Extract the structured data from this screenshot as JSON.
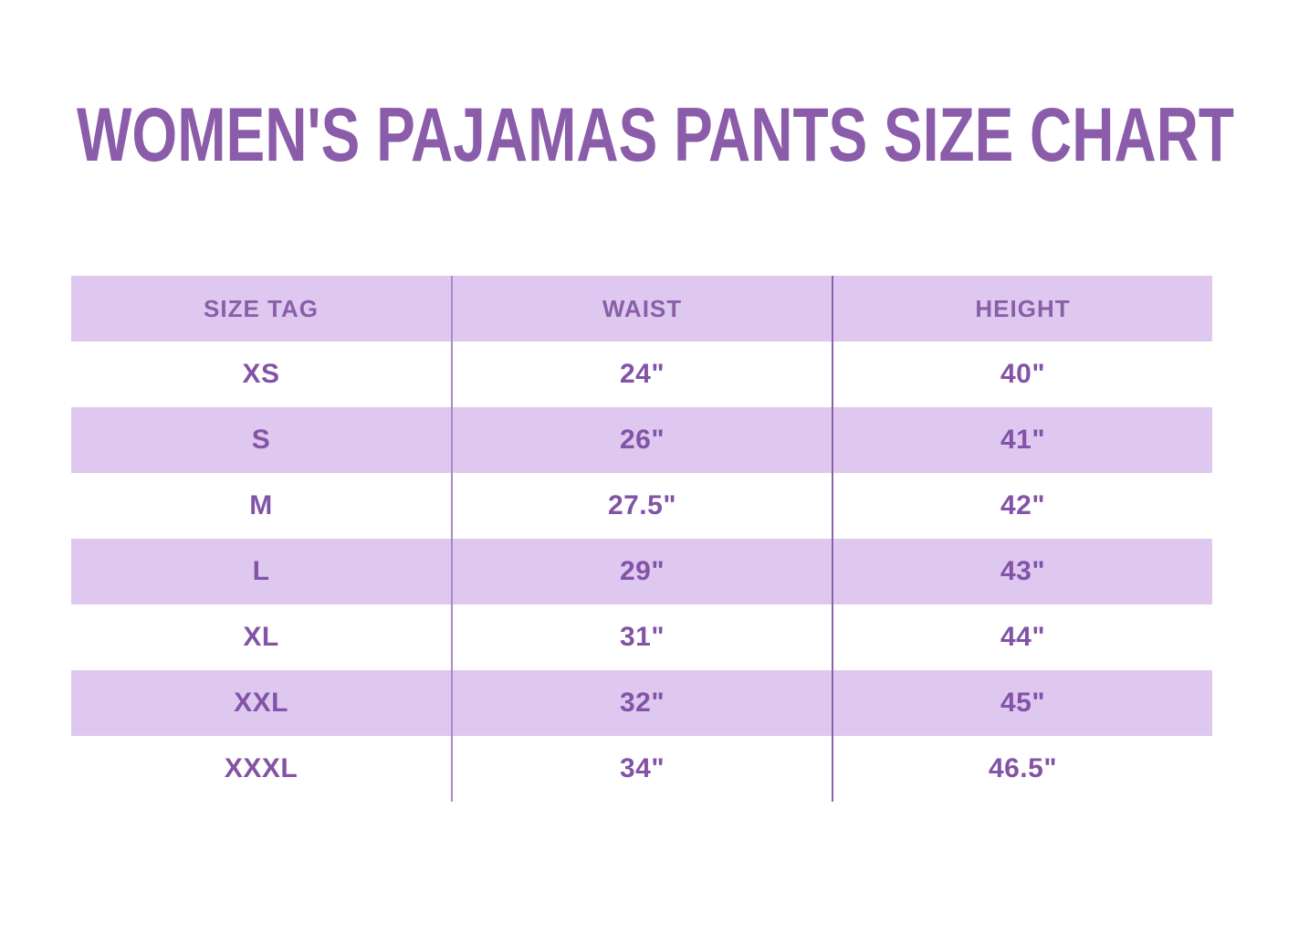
{
  "page": {
    "title": "WOMEN'S PAJAMAS PANTS SIZE CHART"
  },
  "colors": {
    "background": "#ffffff",
    "title": "#8b5ca9",
    "header_text": "#8a5fa8",
    "cell_text": "#8253a6",
    "row_fill": "#dec8f0",
    "divider": "#a98bc9",
    "divider_dark": "#8a62ae"
  },
  "table": {
    "columns": [
      "SIZE TAG",
      "WAIST",
      "HEIGHT"
    ],
    "rows": [
      {
        "size": "XS",
        "waist": "24\"",
        "height": "40\""
      },
      {
        "size": "S",
        "waist": "26\"",
        "height": "41\""
      },
      {
        "size": "M",
        "waist": "27.5\"",
        "height": "42\""
      },
      {
        "size": "L",
        "waist": "29\"",
        "height": "43\""
      },
      {
        "size": "XL",
        "waist": "31\"",
        "height": "44\""
      },
      {
        "size": "XXL",
        "waist": "32\"",
        "height": "45\""
      },
      {
        "size": "XXXL",
        "waist": "34\"",
        "height": "46.5\""
      }
    ]
  },
  "chart_data": {
    "type": "table",
    "title": "WOMEN'S PAJAMAS PANTS SIZE CHART",
    "columns": [
      "SIZE TAG",
      "WAIST",
      "HEIGHT"
    ],
    "rows": [
      [
        "XS",
        "24\"",
        "40\""
      ],
      [
        "S",
        "26\"",
        "41\""
      ],
      [
        "M",
        "27.5\"",
        "42\""
      ],
      [
        "L",
        "29\"",
        "43\""
      ],
      [
        "XL",
        "31\"",
        "44\""
      ],
      [
        "XXL",
        "32\"",
        "45\""
      ],
      [
        "XXXL",
        "34\"",
        "46.5\""
      ]
    ],
    "waist_inches": [
      24,
      26,
      27.5,
      29,
      31,
      32,
      34
    ],
    "height_inches": [
      40,
      41,
      42,
      43,
      44,
      45,
      46.5
    ],
    "layout_hints": {
      "header_background": "alternating lavender rows starting with header",
      "grid": "vertical column dividers only"
    }
  }
}
